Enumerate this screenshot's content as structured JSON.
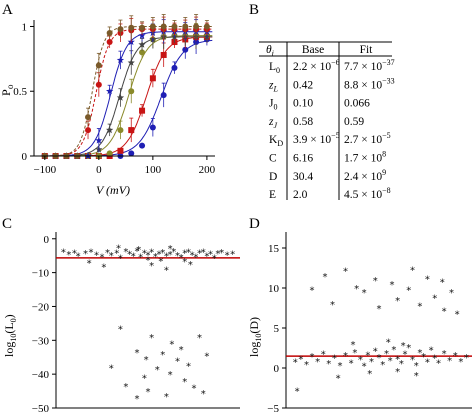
{
  "panels": {
    "A": "A",
    "B": "B",
    "C": "C",
    "D": "D"
  },
  "chart_data": [
    {
      "type": "line",
      "panel": "A",
      "title": "",
      "xlabel": "V (mV)",
      "ylabel": "P o",
      "ylabel_main": "P",
      "ylabel_sub": "o",
      "xlim": [
        -120,
        215
      ],
      "ylim": [
        0,
        1.05
      ],
      "xticks": [
        -100,
        0,
        100,
        200
      ],
      "xtick_labels": [
        "−100",
        "0",
        "100",
        "200"
      ],
      "yticks": [
        0,
        0.5,
        1
      ],
      "ytick_labels": [
        "0",
        "0.5",
        "1"
      ],
      "series": [
        {
          "color": "#1f1fb4",
          "marker": "circle",
          "style": "solid",
          "v_half": 115,
          "slope": 20,
          "x": [
            -100,
            -80,
            -60,
            -40,
            -20,
            0,
            20,
            40,
            60,
            80,
            100,
            120,
            140,
            160,
            180,
            200
          ],
          "y": [
            0,
            0,
            0,
            0,
            0,
            0,
            0,
            0,
            0.02,
            0.08,
            0.22,
            0.47,
            0.68,
            0.82,
            0.88,
            0.9
          ]
        },
        {
          "color": "#c81414",
          "marker": "square",
          "style": "solid",
          "v_half": 88,
          "slope": 18,
          "x": [
            -100,
            -80,
            -60,
            -40,
            -20,
            0,
            20,
            40,
            60,
            80,
            100,
            120,
            140,
            160,
            180,
            200
          ],
          "y": [
            0,
            0,
            0,
            0,
            0,
            0,
            0,
            0.04,
            0.2,
            0.35,
            0.6,
            0.78,
            0.88,
            0.9,
            0.92,
            0.92
          ]
        },
        {
          "color": "#8a8a2a",
          "marker": "circle",
          "style": "solid",
          "v_half": 55,
          "slope": 17,
          "x": [
            -100,
            -80,
            -60,
            -40,
            -20,
            0,
            20,
            40,
            60,
            80,
            100,
            120,
            140,
            160,
            180,
            200
          ],
          "y": [
            0,
            0,
            0,
            0,
            0,
            0,
            0.02,
            0.2,
            0.5,
            0.8,
            0.9,
            0.92,
            0.93,
            0.93,
            0.93,
            0.93
          ]
        },
        {
          "color": "#444444",
          "marker": "star",
          "style": "solid",
          "v_half": 38,
          "slope": 16,
          "x": [
            -100,
            -80,
            -60,
            -40,
            -20,
            0,
            20,
            40,
            60,
            80,
            100,
            120,
            140,
            160,
            180,
            200
          ],
          "y": [
            0,
            0,
            0,
            0,
            0,
            0.05,
            0.2,
            0.45,
            0.72,
            0.86,
            0.9,
            0.92,
            0.92,
            0.92,
            0.92,
            0.92
          ]
        },
        {
          "color": "#1f1fb4",
          "marker": "star",
          "style": "solid",
          "v_half": 22,
          "slope": 15,
          "x": [
            -100,
            -80,
            -60,
            -40,
            -20,
            0,
            20,
            40,
            60,
            80,
            100,
            120,
            140,
            160,
            180,
            200
          ],
          "y": [
            0,
            0,
            0,
            0,
            0,
            0.12,
            0.5,
            0.74,
            0.88,
            0.93,
            0.95,
            0.96,
            0.96,
            0.96,
            0.96,
            0.96
          ]
        },
        {
          "color": "#c81414",
          "marker": "circle",
          "style": "dashed",
          "v_half": -5,
          "slope": 12,
          "x": [
            -100,
            -80,
            -60,
            -40,
            -20,
            0,
            20,
            40,
            60,
            80,
            100,
            120,
            140,
            160,
            180,
            200
          ],
          "y": [
            0,
            0,
            0,
            0,
            0.2,
            0.55,
            0.88,
            0.95,
            0.97,
            0.98,
            0.98,
            0.98,
            0.98,
            0.98,
            0.98,
            0.98
          ]
        },
        {
          "color": "#7a5a2a",
          "marker": "circle",
          "style": "dashed",
          "v_half": -12,
          "slope": 11,
          "x": [
            -100,
            -80,
            -60,
            -40,
            -20,
            0,
            20,
            40,
            60,
            80,
            100,
            120,
            140,
            160,
            180,
            200
          ],
          "y": [
            0,
            0,
            0,
            0,
            0.3,
            0.7,
            0.95,
            0.98,
            0.99,
            0.99,
            1,
            1,
            1,
            1,
            1,
            1
          ]
        }
      ]
    },
    {
      "type": "table",
      "panel": "B",
      "columns": [
        "θi",
        "Base",
        "Fit"
      ],
      "rows": [
        [
          "L0",
          "2.2 × 10−6",
          "7.7 × 10−37"
        ],
        [
          "zL",
          "0.42",
          "8.8 × 10−33"
        ],
        [
          "J0",
          "0.10",
          "0.066"
        ],
        [
          "zJ",
          "0.58",
          "0.59"
        ],
        [
          "KD",
          "3.9 × 10−5",
          "2.7 × 10−5"
        ],
        [
          "C",
          "6.16",
          "1.7 × 108"
        ],
        [
          "D",
          "30.4",
          "2.4 × 109"
        ],
        [
          "E",
          "2.0",
          "4.5 × 10−8"
        ]
      ],
      "header": {
        "theta": "θ",
        "theta_sub": "i",
        "base": "Base",
        "fit": "Fit"
      },
      "cells": [
        {
          "name": "L",
          "sub": "0",
          "italic": false,
          "base": "2.2 × 10",
          "base_exp": "−6",
          "fit": "7.7 × 10",
          "fit_exp": "−37"
        },
        {
          "name": "z",
          "sub": "L",
          "italic": true,
          "base": "0.42",
          "base_exp": "",
          "fit": "8.8 × 10",
          "fit_exp": "−33"
        },
        {
          "name": "J",
          "sub": "0",
          "italic": false,
          "base": "0.10",
          "base_exp": "",
          "fit": "0.066",
          "fit_exp": ""
        },
        {
          "name": "z",
          "sub": "J",
          "italic": true,
          "base": "0.58",
          "base_exp": "",
          "fit": "0.59",
          "fit_exp": ""
        },
        {
          "name": "K",
          "sub": "D",
          "italic": false,
          "base": "3.9 × 10",
          "base_exp": "−5",
          "fit": "2.7 × 10",
          "fit_exp": "−5"
        },
        {
          "name": "C",
          "sub": "",
          "italic": false,
          "base": "6.16",
          "base_exp": "",
          "fit": "1.7 × 10",
          "fit_exp": "8"
        },
        {
          "name": "D",
          "sub": "",
          "italic": false,
          "base": "30.4",
          "base_exp": "",
          "fit": "2.4 × 10",
          "fit_exp": "9"
        },
        {
          "name": "E",
          "sub": "",
          "italic": false,
          "base": "2.0",
          "base_exp": "",
          "fit": "4.5 × 10",
          "fit_exp": "−8"
        }
      ]
    },
    {
      "type": "scatter",
      "panel": "C",
      "title": "",
      "xlabel": "",
      "ylabel": "log10(L0)",
      "ylim": [
        -50,
        2
      ],
      "yticks": [
        0,
        -10,
        -20,
        -30,
        -40,
        -50
      ],
      "ytick_labels": [
        "0",
        "−10",
        "−20",
        "−30",
        "−40",
        "−50"
      ],
      "reference_line": {
        "y": -5.66,
        "color": "#c00000"
      },
      "marker": "asterisk",
      "points": [
        [
          0.04,
          -3.8
        ],
        [
          0.07,
          -4.5
        ],
        [
          0.1,
          -4.0
        ],
        [
          0.12,
          -5.0
        ],
        [
          0.16,
          -4.2
        ],
        [
          0.19,
          -3.7
        ],
        [
          0.22,
          -4.6
        ],
        [
          0.25,
          -5.2
        ],
        [
          0.28,
          -3.9
        ],
        [
          0.3,
          -4.8
        ],
        [
          0.33,
          -4.1
        ],
        [
          0.35,
          -5.5
        ],
        [
          0.38,
          -3.6
        ],
        [
          0.4,
          -4.4
        ],
        [
          0.42,
          -4.9
        ],
        [
          0.44,
          -3.5
        ],
        [
          0.46,
          -5.3
        ],
        [
          0.48,
          -4.0
        ],
        [
          0.5,
          -4.7
        ],
        [
          0.52,
          -3.8
        ],
        [
          0.54,
          -5.1
        ],
        [
          0.56,
          -4.3
        ],
        [
          0.58,
          -3.9
        ],
        [
          0.6,
          -5.0
        ],
        [
          0.62,
          -4.5
        ],
        [
          0.64,
          -3.6
        ],
        [
          0.66,
          -4.8
        ],
        [
          0.68,
          -5.4
        ],
        [
          0.7,
          -4.1
        ],
        [
          0.72,
          -3.7
        ],
        [
          0.74,
          -4.6
        ],
        [
          0.76,
          -5.2
        ],
        [
          0.78,
          -4.0
        ],
        [
          0.8,
          -3.8
        ],
        [
          0.82,
          -4.9
        ],
        [
          0.84,
          -4.3
        ],
        [
          0.86,
          -5.6
        ],
        [
          0.88,
          -4.2
        ],
        [
          0.9,
          -3.9
        ],
        [
          0.93,
          -4.7
        ],
        [
          0.96,
          -4.4
        ],
        [
          0.45,
          -3.0
        ],
        [
          0.5,
          -6.1
        ],
        [
          0.34,
          -2.6
        ],
        [
          0.62,
          -2.8
        ],
        [
          0.57,
          -6.4
        ],
        [
          0.7,
          -6.5
        ],
        [
          0.26,
          -8.2
        ],
        [
          0.52,
          -7.8
        ],
        [
          0.6,
          -9.1
        ],
        [
          0.18,
          -7.0
        ],
        [
          0.73,
          -7.4
        ],
        [
          0.35,
          -26.5
        ],
        [
          0.52,
          -29.0
        ],
        [
          0.78,
          -29.0
        ],
        [
          0.63,
          -31.0
        ],
        [
          0.68,
          -32.5
        ],
        [
          0.44,
          -33.5
        ],
        [
          0.58,
          -34.0
        ],
        [
          0.82,
          -34.5
        ],
        [
          0.49,
          -35.5
        ],
        [
          0.66,
          -36.0
        ],
        [
          0.72,
          -37.5
        ],
        [
          0.3,
          -38.0
        ],
        [
          0.55,
          -38.5
        ],
        [
          0.62,
          -40.0
        ],
        [
          0.48,
          -41.0
        ],
        [
          0.7,
          -42.0
        ],
        [
          0.38,
          -43.5
        ],
        [
          0.75,
          -44.0
        ],
        [
          0.5,
          -45.0
        ],
        [
          0.6,
          -46.5
        ],
        [
          0.44,
          -47.0
        ],
        [
          0.8,
          -45.5
        ]
      ]
    },
    {
      "type": "scatter",
      "panel": "D",
      "title": "",
      "xlabel": "",
      "ylabel": "log10(D)",
      "ylim": [
        -5,
        17
      ],
      "yticks": [
        15,
        10,
        5,
        0,
        -5
      ],
      "ytick_labels": [
        "15",
        "10",
        "5",
        "0",
        "−5"
      ],
      "reference_line": {
        "y": 1.48,
        "color": "#c00000"
      },
      "marker": "asterisk",
      "points": [
        [
          0.05,
          0.8
        ],
        [
          0.08,
          1.2
        ],
        [
          0.11,
          0.5
        ],
        [
          0.14,
          1.5
        ],
        [
          0.17,
          0.9
        ],
        [
          0.2,
          1.8
        ],
        [
          0.23,
          0.6
        ],
        [
          0.26,
          1.3
        ],
        [
          0.29,
          0.4
        ],
        [
          0.32,
          1.6
        ],
        [
          0.35,
          0.7
        ],
        [
          0.37,
          2.0
        ],
        [
          0.4,
          1.1
        ],
        [
          0.42,
          0.3
        ],
        [
          0.44,
          1.7
        ],
        [
          0.46,
          0.9
        ],
        [
          0.48,
          2.2
        ],
        [
          0.5,
          1.4
        ],
        [
          0.52,
          0.5
        ],
        [
          0.54,
          1.9
        ],
        [
          0.56,
          1.0
        ],
        [
          0.58,
          2.4
        ],
        [
          0.6,
          1.2
        ],
        [
          0.62,
          0.6
        ],
        [
          0.64,
          1.8
        ],
        [
          0.66,
          2.6
        ],
        [
          0.68,
          1.1
        ],
        [
          0.7,
          0.4
        ],
        [
          0.72,
          2.0
        ],
        [
          0.74,
          1.5
        ],
        [
          0.76,
          0.8
        ],
        [
          0.78,
          2.3
        ],
        [
          0.8,
          1.3
        ],
        [
          0.82,
          0.7
        ],
        [
          0.85,
          1.9
        ],
        [
          0.88,
          1.0
        ],
        [
          0.91,
          1.6
        ],
        [
          0.94,
          0.9
        ],
        [
          0.97,
          1.4
        ],
        [
          0.36,
          3.0
        ],
        [
          0.55,
          3.3
        ],
        [
          0.63,
          2.9
        ],
        [
          0.45,
          -0.6
        ],
        [
          0.7,
          -0.9
        ],
        [
          0.6,
          -0.4
        ],
        [
          0.28,
          -1.2
        ],
        [
          0.06,
          -2.8
        ],
        [
          0.21,
          11.5
        ],
        [
          0.32,
          12.2
        ],
        [
          0.48,
          11.0
        ],
        [
          0.57,
          10.5
        ],
        [
          0.68,
          12.3
        ],
        [
          0.76,
          11.2
        ],
        [
          0.84,
          10.8
        ],
        [
          0.89,
          9.5
        ],
        [
          0.25,
          8.0
        ],
        [
          0.42,
          9.5
        ],
        [
          0.5,
          7.5
        ],
        [
          0.6,
          8.5
        ],
        [
          0.66,
          9.8
        ],
        [
          0.72,
          7.8
        ],
        [
          0.8,
          8.8
        ],
        [
          0.92,
          6.8
        ],
        [
          0.85,
          7.2
        ],
        [
          0.38,
          10.0
        ],
        [
          0.14,
          9.8
        ]
      ]
    }
  ]
}
